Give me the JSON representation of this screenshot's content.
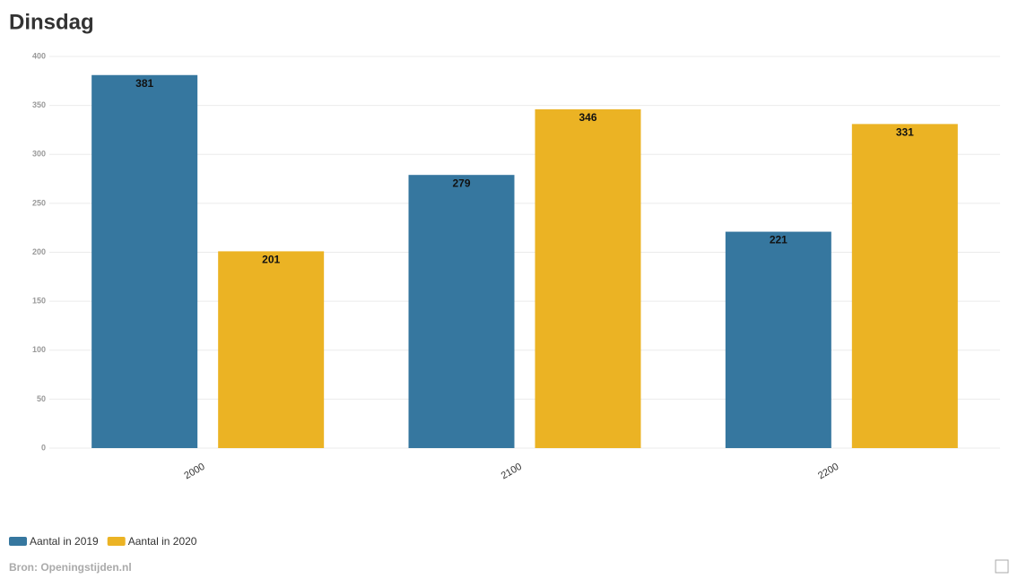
{
  "chart_data": {
    "type": "bar",
    "title": "Dinsdag",
    "source": "Bron: Openingstijden.nl",
    "categories": [
      "2000",
      "2100",
      "2200"
    ],
    "series": [
      {
        "name": "Aantal in 2019",
        "color": "#36779f",
        "values": [
          381,
          279,
          221
        ]
      },
      {
        "name": "Aantal in 2020",
        "color": "#ebb324",
        "values": [
          201,
          346,
          331
        ]
      }
    ],
    "ylim": [
      0,
      400
    ],
    "yticks": [
      0,
      50,
      100,
      150,
      200,
      250,
      300,
      350,
      400
    ],
    "grid": true,
    "legend": "bottom-left"
  }
}
